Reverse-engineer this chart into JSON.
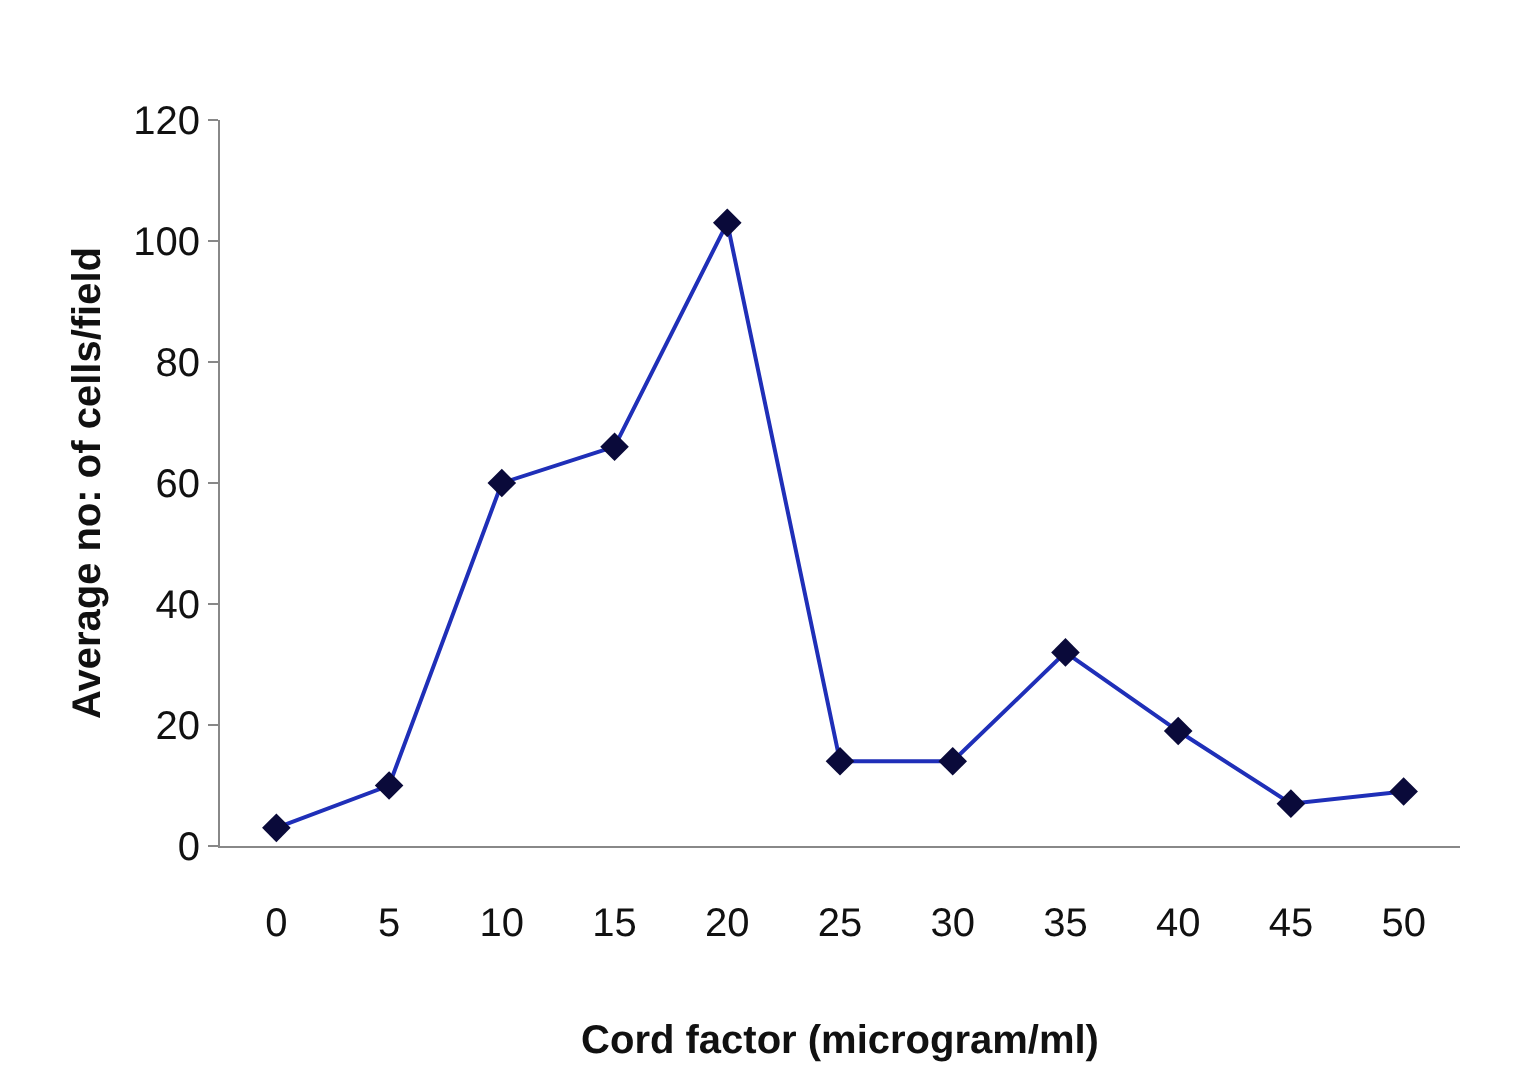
{
  "chart_data": {
    "type": "line",
    "xlabel": "Cord factor (microgram/ml)",
    "ylabel": "Average no: of cells/field",
    "categories": [
      "0",
      "5",
      "10",
      "15",
      "20",
      "25",
      "30",
      "35",
      "40",
      "45",
      "50"
    ],
    "series": [
      {
        "color": "#1f2fb8",
        "values": [
          3,
          10,
          60,
          66,
          103,
          14,
          14,
          32,
          19,
          7,
          9
        ]
      }
    ],
    "ylim": [
      0,
      120
    ],
    "yticks": [
      0,
      20,
      40,
      60,
      80,
      100,
      120
    ],
    "legend": false,
    "marker": "diamond",
    "line_style": "solid"
  }
}
